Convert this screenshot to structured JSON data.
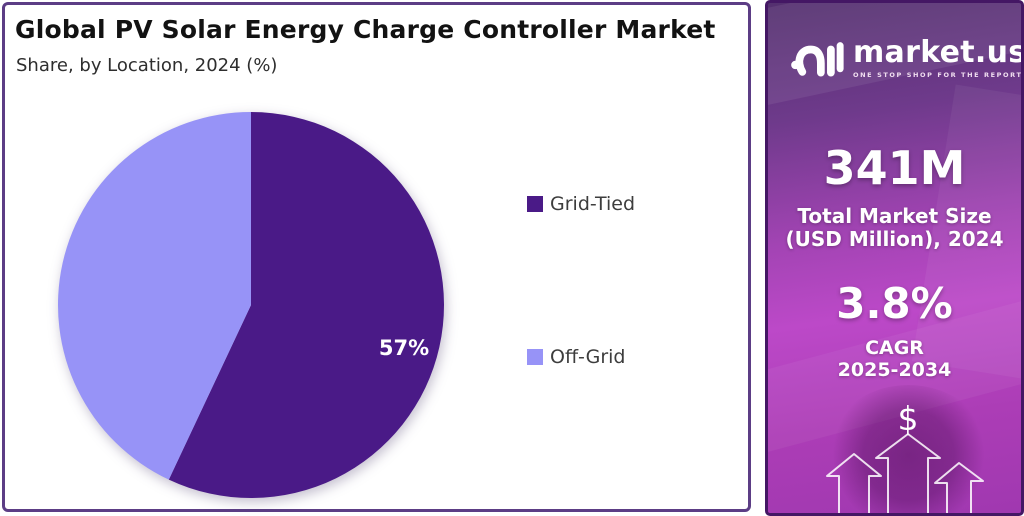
{
  "header": {
    "title": "Global PV Solar Energy Charge Controller Market",
    "subtitle": "Share, by Location, 2024 (%)"
  },
  "chart_data": {
    "type": "pie",
    "title": "Global PV Solar Energy Charge Controller Market",
    "subtitle": "Share, by Location, 2024 (%)",
    "categories": [
      "Grid-Tied",
      "Off-Grid"
    ],
    "values": [
      57,
      43
    ],
    "unit": "%",
    "colors": [
      "#4A1A87",
      "#9793F7"
    ],
    "datalabels": [
      "57%",
      ""
    ],
    "start_angle_deg": 0,
    "direction": "clockwise",
    "legend_position": "right"
  },
  "legend": {
    "items": [
      {
        "label": "Grid-Tied",
        "color": "#4A1A87"
      },
      {
        "label": "Off-Grid",
        "color": "#9793F7"
      }
    ]
  },
  "sidebar": {
    "logo": {
      "brand": "market.us",
      "tagline": "ONE STOP SHOP FOR THE REPORTS"
    },
    "stats": [
      {
        "value": "341M",
        "label_line1": "Total Market Size",
        "label_line2": "(USD Million), 2024"
      },
      {
        "value": "3.8%",
        "label_line1": "CAGR",
        "label_line2": "2025-2034"
      }
    ],
    "dollar_symbol": "$",
    "colors": {
      "gradient_top": "#54306F",
      "gradient_mid": "#BC49C8",
      "gradient_bottom": "#A038B0"
    }
  },
  "panel": {
    "border_color": "#5C3D85"
  }
}
